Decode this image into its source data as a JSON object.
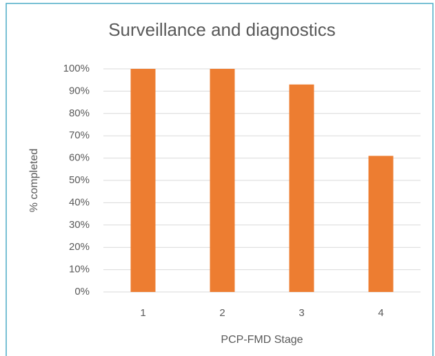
{
  "chart_data": {
    "type": "bar",
    "title": "Surveillance and diagnostics",
    "x_label": "PCP-FMD Stage",
    "y_label": "% completed",
    "categories": [
      "1",
      "2",
      "3",
      "4"
    ],
    "values": [
      100,
      100,
      93,
      61
    ],
    "color": "#ed7d31",
    "ylim": [
      0,
      100
    ],
    "yticks": [
      {
        "value": 0,
        "label": "0%"
      },
      {
        "value": 10,
        "label": "10%"
      },
      {
        "value": 20,
        "label": "20%"
      },
      {
        "value": 30,
        "label": "30%"
      },
      {
        "value": 40,
        "label": "40%"
      },
      {
        "value": 50,
        "label": "50%"
      },
      {
        "value": 60,
        "label": "60%"
      },
      {
        "value": 70,
        "label": "70%"
      },
      {
        "value": 80,
        "label": "80%"
      },
      {
        "value": 90,
        "label": "90%"
      },
      {
        "value": 100,
        "label": "100%"
      }
    ],
    "grid": true
  }
}
